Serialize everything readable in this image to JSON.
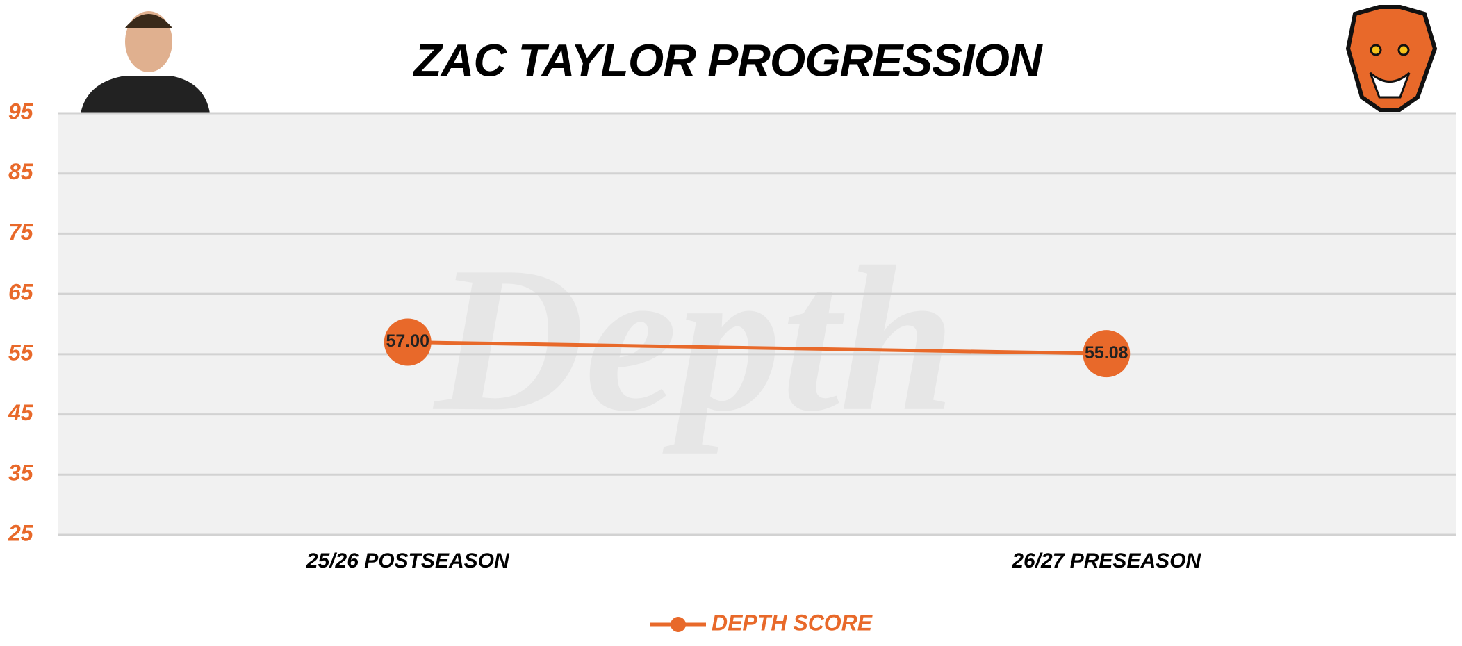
{
  "chart_data": {
    "type": "line",
    "title": "ZAC TAYLOR PROGRESSION",
    "watermark": "Depth",
    "categories": [
      "25/26 POSTSEASON",
      "26/27 PRESEASON"
    ],
    "series": [
      {
        "name": "DEPTH SCORE",
        "color": "#e8692a",
        "values": [
          57.0,
          55.08
        ],
        "value_labels": [
          "57.00",
          "55.08"
        ]
      }
    ],
    "ylim": [
      25,
      95
    ],
    "yticks": [
      25,
      35,
      45,
      55,
      65,
      75,
      85,
      95
    ],
    "grid": true
  }
}
